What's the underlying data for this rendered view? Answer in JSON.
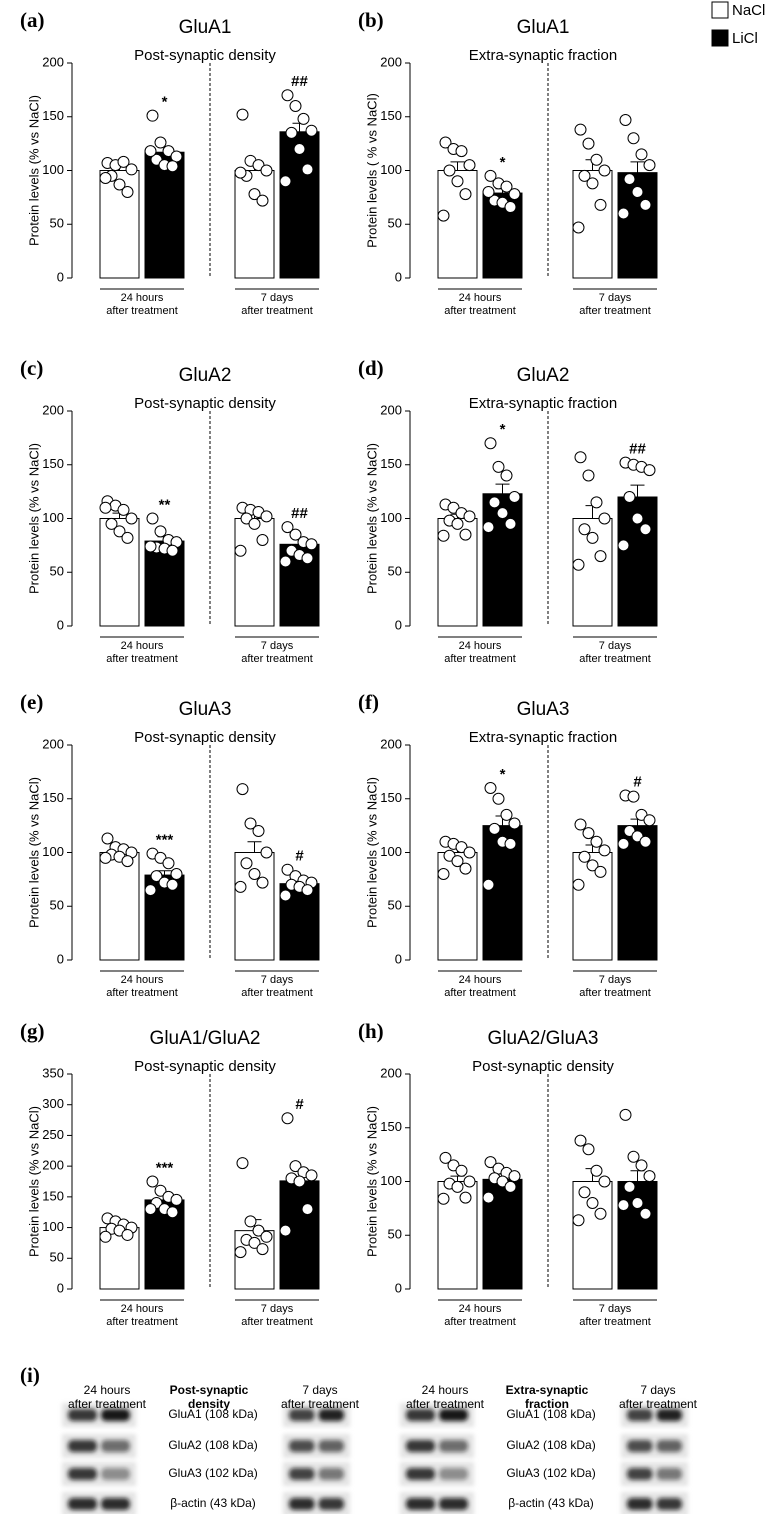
{
  "chart_data": [
    {
      "type": "bar",
      "panel": "(a)",
      "title": "GluA1",
      "subtitle": "Post-synaptic density",
      "y_label": "Protein levels (% vs NaCl)",
      "categories": [
        "24 hours\nafter treatment",
        "7 days\nafter treatment"
      ],
      "ylim": [
        0,
        200
      ],
      "yticks": [
        0,
        50,
        100,
        150,
        200
      ],
      "series": [
        {
          "name": "NaCl",
          "color": "#ffffff",
          "values": [
            100,
            100
          ],
          "errors": [
            5,
            8
          ],
          "points": [
            [
              107,
              105,
              108,
              101,
              95,
              87,
              80,
              93
            ],
            [
              152,
              109,
              105,
              100,
              95,
              78,
              72,
              98
            ]
          ],
          "significance": [
            null,
            null
          ]
        },
        {
          "name": "LiCl",
          "color": "#000000",
          "values": [
            117,
            136
          ],
          "errors": [
            5,
            8
          ],
          "points": [
            [
              151,
              126,
              118,
              113,
              110,
              105,
              104,
              118
            ],
            [
              170,
              160,
              148,
              137,
              135,
              120,
              101,
              90
            ]
          ],
          "significance": [
            "*",
            "##"
          ]
        }
      ]
    },
    {
      "type": "bar",
      "panel": "(b)",
      "title": "GluA1",
      "subtitle": "Extra-synaptic fraction",
      "y_label": "Protein levels ( % vs NaCl)",
      "categories": [
        "24 hours\nafter treatment",
        "7 days\nafter treatment"
      ],
      "ylim": [
        0,
        200
      ],
      "yticks": [
        0,
        50,
        100,
        150,
        200
      ],
      "series": [
        {
          "name": "NaCl",
          "color": "#ffffff",
          "values": [
            100,
            100
          ],
          "errors": [
            8,
            10
          ],
          "points": [
            [
              126,
              120,
              118,
              105,
              100,
              90,
              78,
              58
            ],
            [
              138,
              125,
              110,
              100,
              95,
              88,
              68,
              47
            ]
          ],
          "significance": [
            null,
            null
          ]
        },
        {
          "name": "LiCl",
          "color": "#000000",
          "values": [
            79,
            98
          ],
          "errors": [
            4,
            10
          ],
          "points": [
            [
              95,
              88,
              85,
              78,
              72,
              70,
              66,
              80
            ],
            [
              147,
              130,
              115,
              105,
              92,
              80,
              68,
              60
            ]
          ],
          "significance": [
            "*",
            null
          ]
        }
      ]
    },
    {
      "type": "bar",
      "panel": "(c)",
      "title": "GluA2",
      "subtitle": "Post-synaptic density",
      "y_label": "Protein levels (% vs NaCl)",
      "categories": [
        "24 hours\nafter treatment",
        "7 days\nafter treatment"
      ],
      "ylim": [
        0,
        200
      ],
      "yticks": [
        0,
        50,
        100,
        150,
        200
      ],
      "series": [
        {
          "name": "NaCl",
          "color": "#ffffff",
          "values": [
            100,
            100
          ],
          "errors": [
            5,
            5
          ],
          "points": [
            [
              116,
              112,
              108,
              100,
              95,
              88,
              82,
              110
            ],
            [
              110,
              108,
              106,
              102,
              100,
              95,
              80,
              70
            ]
          ],
          "significance": [
            null,
            null
          ]
        },
        {
          "name": "LiCl",
          "color": "#000000",
          "values": [
            79,
            76
          ],
          "errors": [
            4,
            5
          ],
          "points": [
            [
              100,
              88,
              80,
              78,
              73,
              72,
              70,
              74
            ],
            [
              92,
              85,
              78,
              76,
              70,
              66,
              63,
              60
            ]
          ],
          "significance": [
            "**",
            "##"
          ]
        }
      ]
    },
    {
      "type": "bar",
      "panel": "(d)",
      "title": "GluA2",
      "subtitle": "Extra-synaptic fraction",
      "y_label": "Protein levels (% vs NaCl)",
      "categories": [
        "24 hours\nafter treatment",
        "7 days\nafter treatment"
      ],
      "ylim": [
        0,
        200
      ],
      "yticks": [
        0,
        50,
        100,
        150,
        200
      ],
      "series": [
        {
          "name": "NaCl",
          "color": "#ffffff",
          "values": [
            100,
            100
          ],
          "errors": [
            4,
            12
          ],
          "points": [
            [
              113,
              110,
              105,
              102,
              98,
              95,
              85,
              84
            ],
            [
              157,
              140,
              115,
              100,
              90,
              82,
              65,
              57
            ]
          ],
          "significance": [
            null,
            null
          ]
        },
        {
          "name": "LiCl",
          "color": "#000000",
          "values": [
            123,
            120
          ],
          "errors": [
            9,
            11
          ],
          "points": [
            [
              170,
              148,
              140,
              120,
              115,
              105,
              95,
              92
            ],
            [
              152,
              150,
              148,
              145,
              120,
              100,
              90,
              75
            ]
          ],
          "significance": [
            "*",
            "##"
          ]
        }
      ]
    },
    {
      "type": "bar",
      "panel": "(e)",
      "title": "GluA3",
      "subtitle": "Post-synaptic density",
      "y_label": "Protein levels (% vs NaCl)",
      "categories": [
        "24 hours\nafter treatment",
        "7 days\nafter treatment"
      ],
      "ylim": [
        0,
        200
      ],
      "yticks": [
        0,
        50,
        100,
        150,
        200
      ],
      "series": [
        {
          "name": "NaCl",
          "color": "#ffffff",
          "values": [
            100,
            100
          ],
          "errors": [
            2,
            10
          ],
          "points": [
            [
              113,
              105,
              103,
              100,
              98,
              96,
              92,
              95
            ],
            [
              159,
              127,
              120,
              100,
              90,
              80,
              72,
              68
            ]
          ],
          "significance": [
            null,
            null
          ]
        },
        {
          "name": "LiCl",
          "color": "#000000",
          "values": [
            79,
            71
          ],
          "errors": [
            4,
            3
          ],
          "points": [
            [
              99,
              95,
              90,
              80,
              78,
              72,
              70,
              65
            ],
            [
              84,
              78,
              74,
              72,
              70,
              68,
              65,
              60
            ]
          ],
          "significance": [
            "***",
            "#"
          ]
        }
      ]
    },
    {
      "type": "bar",
      "panel": "(f)",
      "title": "GluA3",
      "subtitle": "Extra-synaptic fraction",
      "y_label": "Protein levels (% vs NaCl)",
      "categories": [
        "24 hours\nafter treatment",
        "7 days\nafter treatment"
      ],
      "ylim": [
        0,
        200
      ],
      "yticks": [
        0,
        50,
        100,
        150,
        200
      ],
      "series": [
        {
          "name": "NaCl",
          "color": "#ffffff",
          "values": [
            100,
            100
          ],
          "errors": [
            4,
            7
          ],
          "points": [
            [
              110,
              108,
              105,
              100,
              97,
              92,
              85,
              80
            ],
            [
              126,
              118,
              110,
              102,
              96,
              88,
              82,
              70
            ]
          ],
          "significance": [
            null,
            null
          ]
        },
        {
          "name": "LiCl",
          "color": "#000000",
          "values": [
            125,
            125
          ],
          "errors": [
            9,
            6
          ],
          "points": [
            [
              160,
              150,
              135,
              127,
              122,
              110,
              108,
              70
            ],
            [
              153,
              152,
              135,
              130,
              120,
              115,
              110,
              108
            ]
          ],
          "significance": [
            "*",
            "#"
          ]
        }
      ]
    },
    {
      "type": "bar",
      "panel": "(g)",
      "title": "GluA1/GluA2",
      "subtitle": "Post-synaptic density",
      "y_label": "Protein levels (% vs NaCl)",
      "categories": [
        "24 hours\nafter treatment",
        "7 days\nafter treatment"
      ],
      "ylim": [
        0,
        350
      ],
      "yticks": [
        0,
        50,
        100,
        150,
        200,
        250,
        300,
        350
      ],
      "series": [
        {
          "name": "NaCl",
          "color": "#ffffff",
          "values": [
            100,
            95
          ],
          "errors": [
            5,
            18
          ],
          "points": [
            [
              115,
              110,
              105,
              100,
              98,
              95,
              88,
              85
            ],
            [
              205,
              110,
              95,
              85,
              80,
              75,
              65,
              60
            ]
          ],
          "significance": [
            null,
            null
          ]
        },
        {
          "name": "LiCl",
          "color": "#000000",
          "values": [
            145,
            176
          ],
          "errors": [
            8,
            18
          ],
          "points": [
            [
              175,
              160,
              150,
              145,
              140,
              130,
              125,
              130
            ],
            [
              278,
              200,
              190,
              185,
              180,
              175,
              130,
              95
            ]
          ],
          "significance": [
            "***",
            "#"
          ]
        }
      ]
    },
    {
      "type": "bar",
      "panel": "(h)",
      "title": "GluA2/GluA3",
      "subtitle": "Post-synaptic density",
      "y_label": "Protein levels (% vs NaCl)",
      "categories": [
        "24 hours\nafter treatment",
        "7 days\nafter treatment"
      ],
      "ylim": [
        0,
        200
      ],
      "yticks": [
        0,
        50,
        100,
        150,
        200
      ],
      "series": [
        {
          "name": "NaCl",
          "color": "#ffffff",
          "values": [
            100,
            100
          ],
          "errors": [
            5,
            12
          ],
          "points": [
            [
              122,
              115,
              110,
              100,
              98,
              95,
              85,
              84
            ],
            [
              138,
              130,
              110,
              100,
              90,
              80,
              70,
              64
            ]
          ],
          "significance": [
            null,
            null
          ]
        },
        {
          "name": "LiCl",
          "color": "#000000",
          "values": [
            102,
            100
          ],
          "errors": [
            5,
            10
          ],
          "points": [
            [
              118,
              112,
              108,
              105,
              103,
              100,
              95,
              85
            ],
            [
              162,
              123,
              115,
              105,
              95,
              80,
              70,
              78
            ]
          ],
          "significance": [
            null,
            null
          ]
        }
      ]
    }
  ],
  "blots": {
    "panel": "(i)",
    "groups": [
      {
        "header": "Post-synaptic\ndensity",
        "left": "24 hours\nafter treatment",
        "right": "7 days\nafter treatment",
        "proteins": [
          "GluA1 (108 kDa)",
          "GluA2 (108 kDa)",
          "GluA3 (102 kDa)",
          "β-actin (43 kDa)"
        ]
      },
      {
        "header": "Extra-synaptic\nfraction",
        "left": "24 hours\nafter treatment",
        "right": "7 days\nafter treatment",
        "proteins": [
          "GluA1 (108 kDa)",
          "GluA2 (108 kDa)",
          "GluA3 (102 kDa)",
          "β-actin (43 kDa)"
        ]
      }
    ]
  }
}
